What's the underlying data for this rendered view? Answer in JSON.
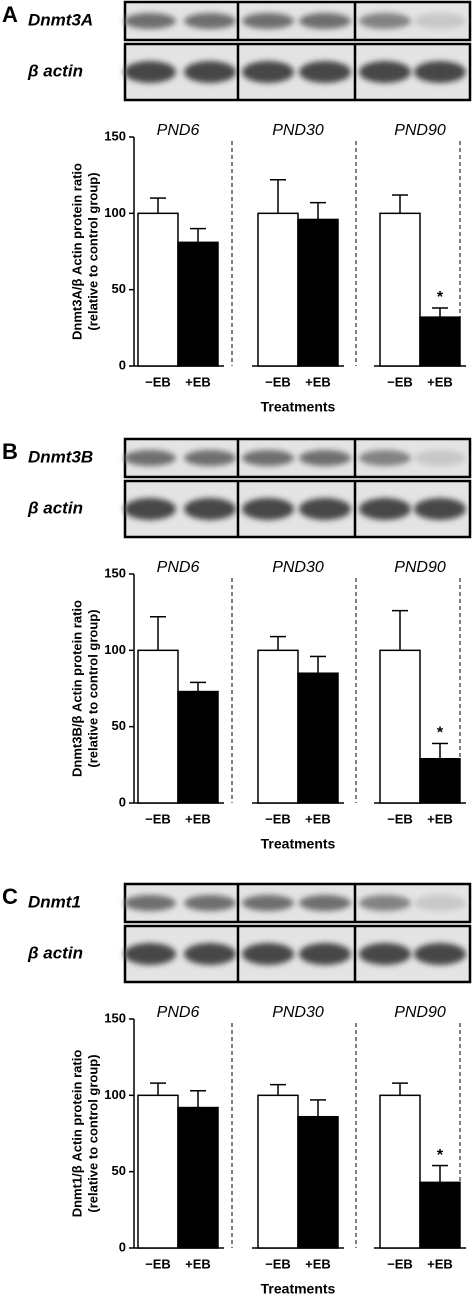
{
  "chart_data": [
    {
      "type": "bar",
      "panel": "A",
      "blot_labels": [
        "Dnmt3A",
        "β actin"
      ],
      "ylabel": [
        "Dnmt3A/β Actin protein ratio",
        "(relative to control group)"
      ],
      "xlabel": "Treatments",
      "groups": [
        "PND6",
        "PND30",
        "PND90"
      ],
      "categories": [
        "−EB",
        "+EB",
        "−EB",
        "+EB",
        "−EB",
        "+EB"
      ],
      "values": [
        100,
        81,
        100,
        96,
        100,
        32
      ],
      "errors": [
        10,
        9,
        22,
        11,
        12,
        6
      ],
      "colors": [
        "#ffffff",
        "#000000",
        "#ffffff",
        "#000000",
        "#ffffff",
        "#000000"
      ],
      "value_annotations": [
        null,
        null,
        null,
        null,
        null,
        "*"
      ],
      "ylim": [
        0,
        150
      ],
      "yticks": [
        0,
        50,
        100,
        150
      ]
    },
    {
      "type": "bar",
      "panel": "B",
      "blot_labels": [
        "Dnmt3B",
        "β actin"
      ],
      "ylabel": [
        "Dnmt3B/β Actin protein ratio",
        "(relative to control group)"
      ],
      "xlabel": "Treatments",
      "groups": [
        "PND6",
        "PND30",
        "PND90"
      ],
      "categories": [
        "−EB",
        "+EB",
        "−EB",
        "+EB",
        "−EB",
        "+EB"
      ],
      "values": [
        100,
        73,
        100,
        85,
        100,
        29
      ],
      "errors": [
        22,
        6,
        9,
        11,
        26,
        10
      ],
      "colors": [
        "#ffffff",
        "#000000",
        "#ffffff",
        "#000000",
        "#ffffff",
        "#000000"
      ],
      "value_annotations": [
        null,
        null,
        null,
        null,
        null,
        "*"
      ],
      "ylim": [
        0,
        150
      ],
      "yticks": [
        0,
        50,
        100,
        150
      ]
    },
    {
      "type": "bar",
      "panel": "C",
      "blot_labels": [
        "Dnmt1",
        "β actin"
      ],
      "ylabel": [
        "Dnmt1/β Actin protein ratio",
        "(relative to control group)"
      ],
      "xlabel": "Treatments",
      "groups": [
        "PND6",
        "PND30",
        "PND90"
      ],
      "categories": [
        "−EB",
        "+EB",
        "−EB",
        "+EB",
        "−EB",
        "+EB"
      ],
      "values": [
        100,
        92,
        100,
        86,
        100,
        43
      ],
      "errors": [
        8,
        11,
        7,
        11,
        8,
        11
      ],
      "colors": [
        "#ffffff",
        "#000000",
        "#ffffff",
        "#000000",
        "#ffffff",
        "#000000"
      ],
      "value_annotations": [
        null,
        null,
        null,
        null,
        null,
        "*"
      ],
      "ylim": [
        0,
        150
      ],
      "yticks": [
        0,
        50,
        100,
        150
      ]
    }
  ]
}
